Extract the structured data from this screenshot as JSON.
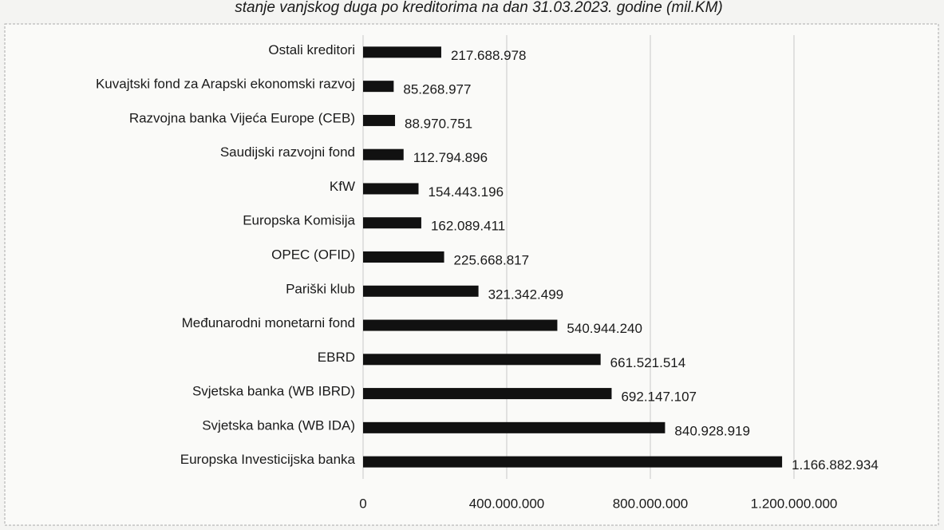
{
  "chart_data": {
    "type": "bar",
    "orientation": "horizontal",
    "title": "stanje vanjskog duga po kreditorima na dan 31.03.2023. godine (mil.KM)",
    "categories": [
      "Ostali kreditori",
      "Kuvajtski fond za Arapski ekonomski razvoj",
      "Razvojna banka Vijeća Europe (CEB)",
      "Saudijski razvojni fond",
      "KfW",
      "Europska Komisija",
      "OPEC (OFID)",
      "Pariški klub",
      "Međunarodni monetarni fond",
      "EBRD",
      "Svjetska banka (WB IBRD)",
      "Svjetska banka (WB IDA)",
      "Europska Investicijska banka"
    ],
    "values": [
      217688978,
      85268977,
      88970751,
      112794896,
      154443196,
      162089411,
      225668817,
      321342499,
      540944240,
      661521514,
      692147107,
      840928919,
      1166882934
    ],
    "value_labels": [
      "217.688.978",
      "85.268.977",
      "88.970.751",
      "112.794.896",
      "154.443.196",
      "162.089.411",
      "225.668.817",
      "321.342.499",
      "540.944.240",
      "661.521.514",
      "692.147.107",
      "840.928.919",
      "1.166.882.934"
    ],
    "color": "#111111",
    "xlim": [
      0,
      1200000000
    ],
    "xticks": [
      0,
      {
        "value": 400000000,
        "label": "400.000.000"
      },
      {
        "value": 800000000,
        "label": "800.000.000"
      },
      {
        "value": 1200000000,
        "label": "1.200.000.000"
      }
    ],
    "grid": true
  }
}
